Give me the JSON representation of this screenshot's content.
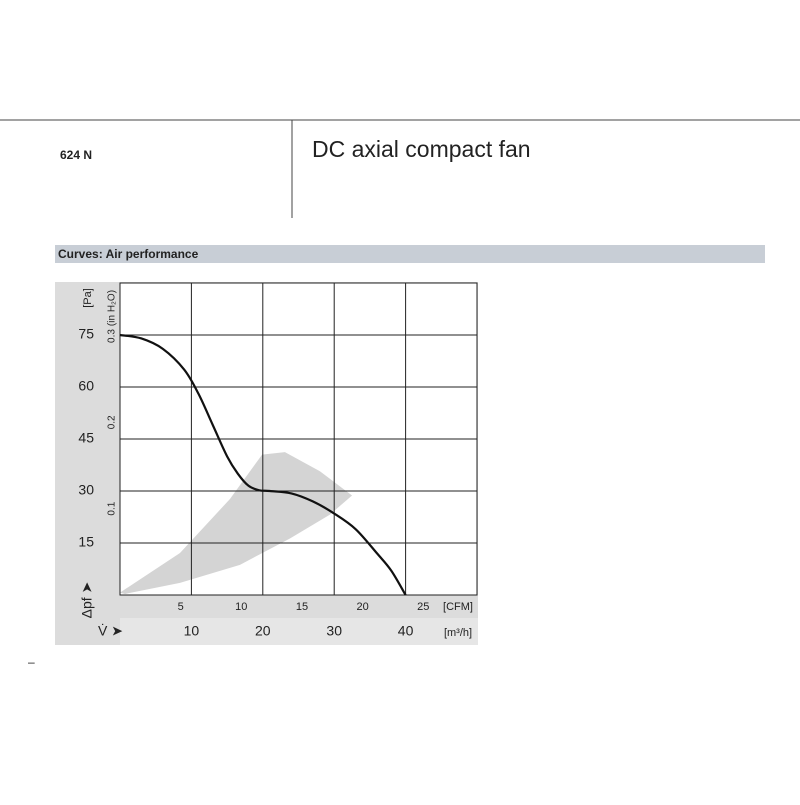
{
  "header": {
    "model": "624 N",
    "title": "DC axial compact fan",
    "section": "Curves: Air performance",
    "footnote": "–"
  },
  "chart_data": {
    "type": "line",
    "ylabel": "[Pa]",
    "y2label": "(in H₂O)",
    "xlabel": "[m³/h]",
    "x2label": "[CFM]",
    "xaxis_symbol": "V̇ ➤",
    "yaxis_symbol": "Δpf ➤",
    "xlim": [
      0,
      50
    ],
    "xticks": [
      10,
      20,
      30,
      40
    ],
    "x2lim": [
      0,
      29.43
    ],
    "x2ticks": [
      5,
      10,
      15,
      20,
      25
    ],
    "ylim": [
      0,
      90
    ],
    "yticks": [
      15,
      30,
      45,
      60,
      75
    ],
    "y2lim": [
      0,
      0.3614
    ],
    "y2ticks": [
      0.1,
      0.2,
      0.3
    ],
    "grid": true,
    "series": [
      {
        "color": "#111111",
        "x": [
          0,
          3,
          6,
          9,
          11,
          13,
          15,
          16.5,
          18,
          19.5,
          21,
          24,
          27,
          30,
          33,
          36,
          38,
          40
        ],
        "values": [
          75,
          74,
          71,
          65,
          58,
          49,
          40,
          35,
          31.5,
          30.2,
          30,
          29.3,
          27,
          23.5,
          19,
          12,
          7,
          0
        ]
      }
    ],
    "region": {
      "color": "#d4d4d4",
      "x": [
        0,
        8.4,
        15.4,
        19.9,
        23.1,
        28.0,
        32.5,
        29.4,
        23.8,
        16.8,
        8.4,
        0.7
      ],
      "values": [
        0.7,
        12.1,
        27.7,
        40.5,
        41.2,
        35.7,
        28.7,
        23.2,
        16.3,
        8.7,
        3.5,
        0.3
      ]
    }
  }
}
